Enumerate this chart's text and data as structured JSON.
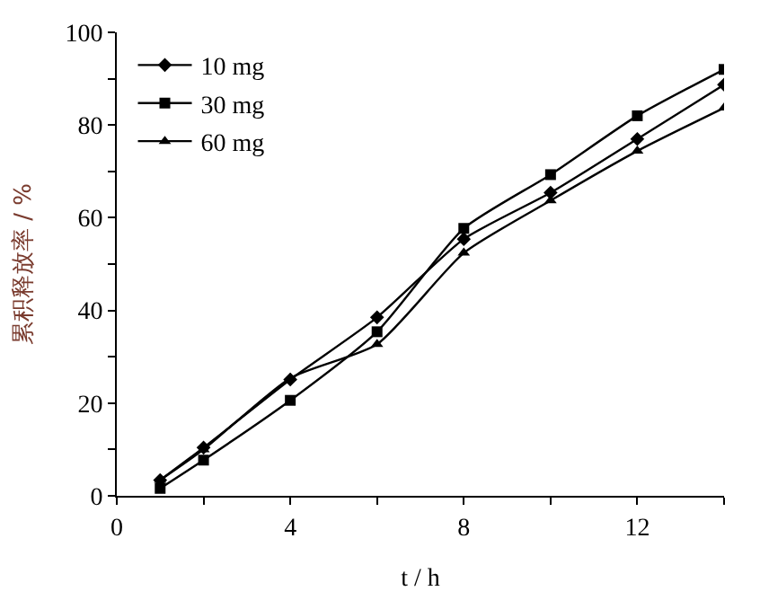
{
  "chart_data": {
    "type": "line",
    "xlabel": "t / h",
    "ylabel": "累积释放率 / %",
    "x": [
      1,
      2,
      4,
      6,
      8,
      10,
      12,
      14
    ],
    "series": [
      {
        "name": "10 mg",
        "color": "#000000",
        "marker": "diamond",
        "values": [
          3.4,
          10.4,
          25.1,
          38.5,
          55.4,
          65.4,
          77,
          88.7
        ]
      },
      {
        "name": "30 mg",
        "color": "#000000",
        "marker": "square",
        "values": [
          1.6,
          7.7,
          20.6,
          35.4,
          57.7,
          69.3,
          82,
          92
        ]
      },
      {
        "name": "60 mg",
        "color": "#000000",
        "marker": "triangle",
        "values": [
          3.4,
          10,
          25.4,
          32.7,
          52.4,
          63.7,
          74.4,
          83.7
        ]
      }
    ],
    "xlim": [
      0,
      14
    ],
    "xticks": [
      0,
      {
        "value": 2,
        "label": null
      },
      4,
      {
        "value": 6,
        "label": null
      },
      8,
      {
        "value": 10,
        "label": null
      },
      12,
      {
        "value": 14,
        "label": null
      }
    ],
    "ylim": [
      0,
      100
    ],
    "yticks": [
      0,
      {
        "value": 10,
        "label": null
      },
      20,
      {
        "value": 30,
        "label": null
      },
      40,
      {
        "value": 50,
        "label": null
      },
      60,
      {
        "value": 70,
        "label": null
      },
      80,
      {
        "value": 90,
        "label": null
      },
      100
    ],
    "legend": "top left",
    "line_style": "solid"
  }
}
